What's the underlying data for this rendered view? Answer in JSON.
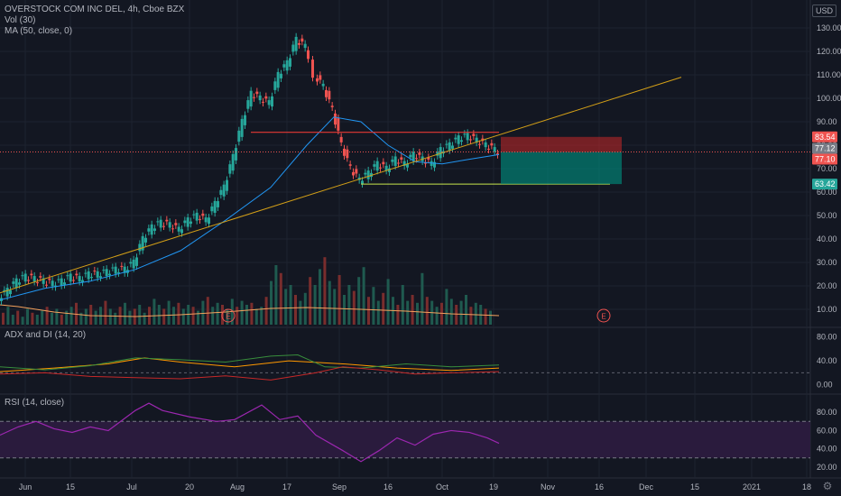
{
  "colors": {
    "background": "#131722",
    "grid": "#1e2330",
    "up": "#26a69a",
    "down": "#ef5350",
    "ma": "#2196f3",
    "vol_ma": "#f5a25d",
    "trend": "#d4a017",
    "support": "#c8e64c",
    "resistance": "#e53935",
    "adx": "#ff9800",
    "di_plus": "#388e3c",
    "di_minus": "#c62828",
    "rsi": "#9c27b0",
    "rsi_band": "#2a1b3d"
  },
  "legend": {
    "symbol": "OVERSTOCK COM INC DEL, 4h, Cboe BZX",
    "vol": "Vol (30)",
    "ma": "MA (50, close, 0)",
    "adx": "ADX and DI (14, 20)",
    "rsi": "RSI (14, close)"
  },
  "currency_label": "USD",
  "settings_icon": "gear-icon",
  "chart_data": [
    {
      "type": "candlestick",
      "title": "OVERSTOCK COM INC DEL, 4h, Cboe BZX",
      "ylim": [
        0,
        140
      ],
      "yticks": [
        "130.00",
        "120.00",
        "110.00",
        "100.00",
        "90.00",
        "80.00",
        "70.00",
        "60.00",
        "50.00",
        "40.00",
        "30.00",
        "20.00",
        "10.00"
      ],
      "ytick_values": [
        130,
        120,
        110,
        100,
        90,
        80,
        70,
        60,
        50,
        40,
        30,
        20,
        10
      ],
      "x_labels": [
        "Jun",
        "15",
        "Jul",
        "20",
        "Aug",
        "17",
        "Sep",
        "16",
        "Oct",
        "19",
        "Nov",
        "16",
        "Dec",
        "15",
        "2021",
        "18"
      ],
      "series_close_path": [
        [
          0,
          15
        ],
        [
          10,
          18
        ],
        [
          20,
          22
        ],
        [
          30,
          24
        ],
        [
          40,
          23
        ],
        [
          50,
          22
        ],
        [
          60,
          21
        ],
        [
          70,
          22
        ],
        [
          80,
          24
        ],
        [
          90,
          23
        ],
        [
          100,
          25
        ],
        [
          110,
          25
        ],
        [
          120,
          26
        ],
        [
          130,
          27
        ],
        [
          140,
          27
        ],
        [
          150,
          30
        ],
        [
          160,
          40
        ],
        [
          170,
          45
        ],
        [
          180,
          47
        ],
        [
          190,
          46
        ],
        [
          200,
          44
        ],
        [
          210,
          48
        ],
        [
          220,
          50
        ],
        [
          230,
          48
        ],
        [
          240,
          55
        ],
        [
          250,
          62
        ],
        [
          260,
          75
        ],
        [
          270,
          90
        ],
        [
          280,
          102
        ],
        [
          290,
          100
        ],
        [
          300,
          98
        ],
        [
          310,
          110
        ],
        [
          320,
          115
        ],
        [
          330,
          125
        ],
        [
          340,
          122
        ],
        [
          345,
          118
        ],
        [
          350,
          110
        ],
        [
          360,
          105
        ],
        [
          370,
          95
        ],
        [
          380,
          80
        ],
        [
          390,
          70
        ],
        [
          400,
          65
        ],
        [
          410,
          68
        ],
        [
          420,
          72
        ],
        [
          430,
          70
        ],
        [
          440,
          74
        ],
        [
          450,
          72
        ],
        [
          460,
          76
        ],
        [
          470,
          74
        ],
        [
          480,
          72
        ],
        [
          490,
          78
        ],
        [
          500,
          80
        ],
        [
          510,
          83
        ],
        [
          520,
          84
        ],
        [
          530,
          82
        ],
        [
          540,
          80
        ],
        [
          550,
          78
        ],
        [
          553,
          77.12
        ]
      ],
      "ma_path": [
        [
          0,
          14
        ],
        [
          50,
          19
        ],
        [
          100,
          22
        ],
        [
          150,
          27
        ],
        [
          200,
          35
        ],
        [
          250,
          48
        ],
        [
          300,
          62
        ],
        [
          340,
          80
        ],
        [
          370,
          92
        ],
        [
          400,
          90
        ],
        [
          430,
          80
        ],
        [
          460,
          73
        ],
        [
          490,
          72
        ],
        [
          520,
          74
        ],
        [
          553,
          76
        ]
      ],
      "volume_heights": [
        6,
        9,
        5,
        7,
        4,
        8,
        6,
        5,
        7,
        9,
        6,
        8,
        5,
        7,
        9,
        11,
        6,
        8,
        10,
        7,
        9,
        12,
        8,
        6,
        9,
        11,
        7,
        8,
        10,
        6,
        9,
        13,
        10,
        8,
        12,
        9,
        11,
        8,
        10,
        9,
        7,
        12,
        14,
        9,
        11,
        10,
        8,
        13,
        9,
        12,
        10,
        11,
        8,
        9,
        14,
        22,
        30,
        26,
        18,
        20,
        15,
        12,
        16,
        24,
        20,
        28,
        34,
        22,
        18,
        25,
        15,
        20,
        17,
        24,
        29,
        14,
        19,
        12,
        16,
        23,
        14,
        10,
        20,
        12,
        15,
        11,
        26,
        14,
        12,
        9,
        11,
        18,
        13,
        10,
        12,
        15,
        9,
        11,
        10,
        8,
        7
      ],
      "vol_ma": [
        [
          0,
          22
        ],
        [
          20,
          20
        ],
        [
          60,
          14
        ],
        [
          100,
          10
        ],
        [
          150,
          9
        ],
        [
          200,
          11
        ],
        [
          250,
          14
        ],
        [
          300,
          18
        ],
        [
          340,
          19
        ],
        [
          400,
          17
        ],
        [
          450,
          15
        ],
        [
          500,
          12
        ],
        [
          553,
          10
        ]
      ],
      "price_labels": [
        {
          "text": "83.54",
          "value": 83.54,
          "color": "#ef5350"
        },
        {
          "text": "77.12",
          "value": 77.12,
          "color": "#787b86"
        },
        {
          "text": "77.10",
          "value": 77.1,
          "color": "#ef5350"
        },
        {
          "text": "63.42",
          "value": 63.42,
          "color": "#26a69a"
        }
      ],
      "position": {
        "entry": 77.1,
        "stop": 83.54,
        "target": 63.42
      },
      "trendline": {
        "from": [
          0,
          17
        ],
        "to": [
          755,
          109
        ]
      },
      "resistance": {
        "value": 85.5,
        "x0": 278,
        "x1": 553
      },
      "support": {
        "value": 63.42,
        "x0": 400,
        "x1": 676
      },
      "earnings_markers": [
        {
          "label": "E",
          "x": 253
        },
        {
          "label": "E",
          "x": 669
        }
      ]
    },
    {
      "type": "line",
      "title": "ADX and DI (14, 20)",
      "yticks": [
        "80.00",
        "40.00",
        "0.00"
      ],
      "ytick_values": [
        80,
        40,
        0
      ],
      "ylim": [
        -5,
        90
      ],
      "threshold": 20,
      "series": [
        {
          "name": "ADX",
          "values": [
            [
              0,
              22
            ],
            [
              60,
              28
            ],
            [
              120,
              35
            ],
            [
              160,
              45
            ],
            [
              200,
              38
            ],
            [
              260,
              30
            ],
            [
              320,
              40
            ],
            [
              380,
              35
            ],
            [
              440,
              28
            ],
            [
              500,
              24
            ],
            [
              553,
              28
            ]
          ]
        },
        {
          "name": "+DI",
          "values": [
            [
              0,
              30
            ],
            [
              50,
              25
            ],
            [
              100,
              32
            ],
            [
              150,
              45
            ],
            [
              200,
              42
            ],
            [
              250,
              38
            ],
            [
              300,
              48
            ],
            [
              330,
              50
            ],
            [
              360,
              30
            ],
            [
              400,
              28
            ],
            [
              450,
              35
            ],
            [
              500,
              30
            ],
            [
              553,
              33
            ]
          ]
        },
        {
          "name": "-DI",
          "values": [
            [
              0,
              18
            ],
            [
              50,
              20
            ],
            [
              100,
              14
            ],
            [
              150,
              12
            ],
            [
              200,
              10
            ],
            [
              250,
              15
            ],
            [
              300,
              8
            ],
            [
              350,
              20
            ],
            [
              380,
              30
            ],
            [
              420,
              25
            ],
            [
              460,
              18
            ],
            [
              500,
              20
            ],
            [
              553,
              22
            ]
          ]
        }
      ]
    },
    {
      "type": "line",
      "title": "RSI (14, close)",
      "yticks": [
        "80.00",
        "60.00",
        "40.00",
        "20.00"
      ],
      "ytick_values": [
        80,
        60,
        40,
        20
      ],
      "ylim": [
        12,
        96
      ],
      "band": [
        30,
        70
      ],
      "series": [
        {
          "name": "RSI",
          "values": [
            [
              0,
              55
            ],
            [
              20,
              64
            ],
            [
              40,
              70
            ],
            [
              60,
              62
            ],
            [
              80,
              58
            ],
            [
              100,
              64
            ],
            [
              120,
              60
            ],
            [
              150,
              82
            ],
            [
              165,
              90
            ],
            [
              180,
              82
            ],
            [
              210,
              75
            ],
            [
              240,
              70
            ],
            [
              260,
              72
            ],
            [
              290,
              88
            ],
            [
              310,
              72
            ],
            [
              330,
              76
            ],
            [
              350,
              55
            ],
            [
              380,
              38
            ],
            [
              400,
              26
            ],
            [
              420,
              38
            ],
            [
              440,
              52
            ],
            [
              460,
              44
            ],
            [
              480,
              56
            ],
            [
              500,
              60
            ],
            [
              520,
              58
            ],
            [
              540,
              52
            ],
            [
              553,
              46
            ]
          ]
        }
      ]
    }
  ]
}
